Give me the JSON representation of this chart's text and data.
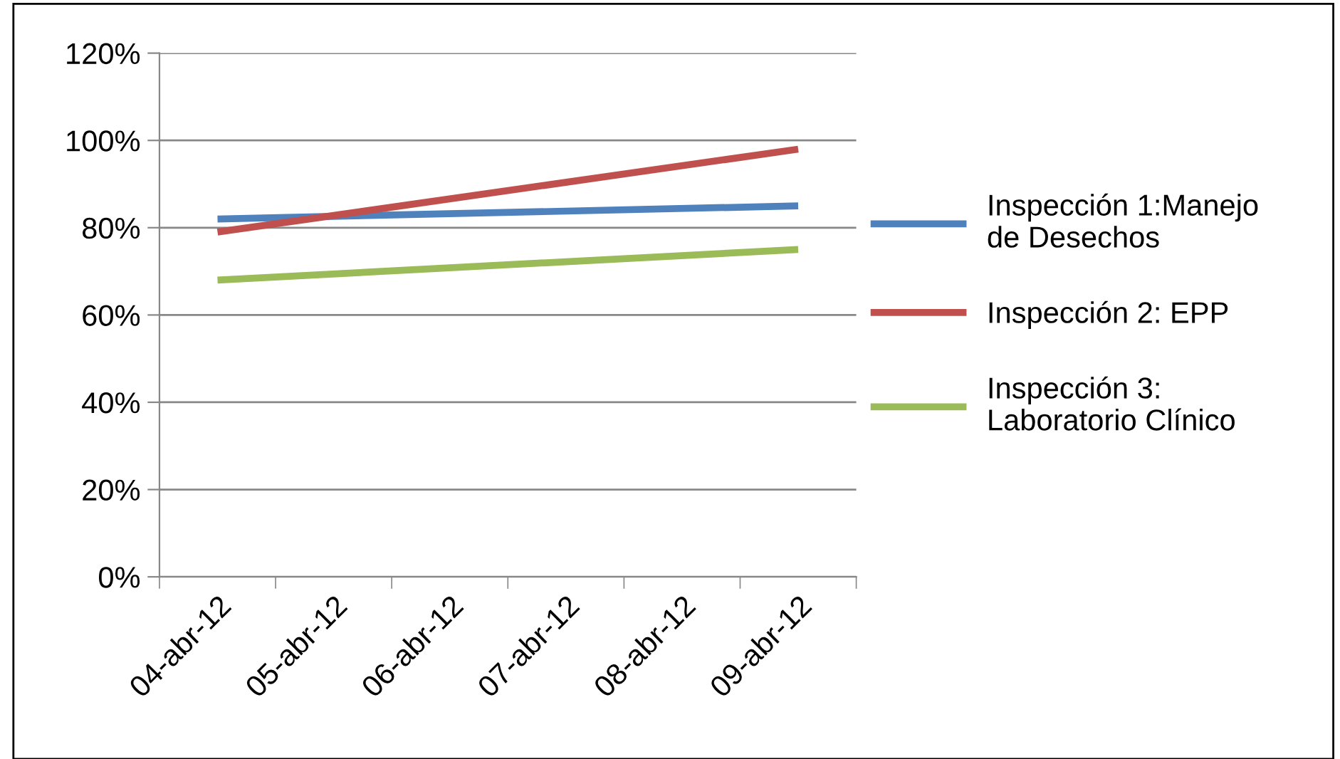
{
  "chart_data": {
    "type": "line",
    "categories": [
      "04-abr-12",
      "05-abr-12",
      "06-abr-12",
      "07-abr-12",
      "08-abr-12",
      "09-abr-12"
    ],
    "series": [
      {
        "name": "Inspección 1:Manejo\nde Desechos",
        "color": "#4f81bd",
        "values": [
          82,
          null,
          null,
          null,
          null,
          85
        ]
      },
      {
        "name": "Inspección 2: EPP",
        "color": "#c0504d",
        "values": [
          79,
          null,
          null,
          null,
          null,
          98
        ]
      },
      {
        "name": "Inspección 3:\nLaboratorio Clínico",
        "color": "#9bbb59",
        "values": [
          68,
          null,
          null,
          null,
          null,
          75
        ]
      }
    ],
    "ylim": [
      0,
      120
    ],
    "yticks": [
      {
        "value": 0,
        "label": "0%"
      },
      {
        "value": 20,
        "label": "20%"
      },
      {
        "value": 40,
        "label": "40%"
      },
      {
        "value": 60,
        "label": "60%"
      },
      {
        "value": 80,
        "label": "80%"
      },
      {
        "value": 100,
        "label": "100%"
      },
      {
        "value": 120,
        "label": "120%"
      }
    ],
    "grid": "y",
    "legend": "right",
    "marker": "none",
    "line_style": "solid"
  }
}
